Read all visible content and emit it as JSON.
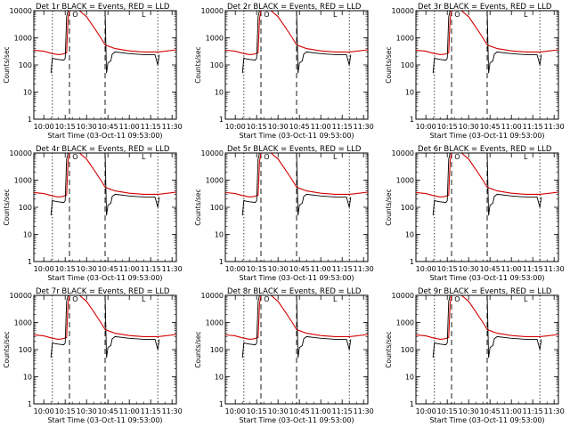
{
  "chart_data": {
    "type": "line",
    "layout": "3x3 grid",
    "xlabel": "Start Time (03-Oct-11 09:53:00)",
    "ylabel": "Counts/sec",
    "y_scale": "log",
    "ylim": [
      1,
      10000
    ],
    "xlim": [
      "09:53",
      "11:33"
    ],
    "x_tick_labels": [
      "10:00",
      "10:15",
      "10:30",
      "10:45",
      "11:00",
      "11:15",
      "11:30"
    ],
    "y_tick_labels": [
      "1",
      "10",
      "100",
      "1000",
      "10000"
    ],
    "markers": {
      "dotted_lines": [
        "10:06",
        "11:20"
      ],
      "dashed_lines": [
        "10:18",
        "10:43"
      ],
      "labels": [
        {
          "text": "O",
          "at": "10:22"
        },
        {
          "text": "L",
          "at": "11:10"
        }
      ]
    },
    "series_legend": {
      "black": "Events",
      "red": "LLD"
    },
    "panels": [
      {
        "title": "Det 1r  BLACK = Events, RED = LLD"
      },
      {
        "title": "Det 2r  BLACK = Events, RED = LLD"
      },
      {
        "title": "Det 3r  BLACK = Events, RED = LLD"
      },
      {
        "title": "Det 4r  BLACK = Events, RED = LLD"
      },
      {
        "title": "Det 5r  BLACK = Events, RED = LLD"
      },
      {
        "title": "Det 6r  BLACK = Events, RED = LLD"
      },
      {
        "title": "Det 7r  BLACK = Events, RED = LLD"
      },
      {
        "title": "Det 8r  BLACK = Events, RED = LLD"
      },
      {
        "title": "Det 9r  BLACK = Events, RED = LLD"
      }
    ],
    "series": [
      {
        "color": "#d40000",
        "x": [
          "09:53",
          "10:00",
          "10:05",
          "10:10",
          "10:13",
          "10:16",
          "10:17",
          "10:18",
          "10:25",
          "10:30",
          "10:35",
          "10:40",
          "10:43",
          "10:45",
          "10:50",
          "11:00",
          "11:10",
          "11:20",
          "11:25",
          "11:33"
        ],
        "y": [
          350,
          320,
          270,
          240,
          250,
          280,
          5000,
          12000,
          12000,
          6000,
          2500,
          1000,
          550,
          500,
          400,
          330,
          300,
          300,
          320,
          360
        ]
      },
      {
        "color": "#000000",
        "x": [
          "10:05",
          "10:06",
          "10:07",
          "10:10",
          "10:14",
          "10:15",
          "10:16",
          "10:17",
          "10:18",
          "10:43",
          "10:44",
          "10:45",
          "10:47",
          "10:48",
          "10:50",
          "11:00",
          "11:10",
          "11:18",
          "11:20",
          "11:21"
        ],
        "y": [
          50,
          180,
          170,
          160,
          150,
          175,
          6000,
          12000,
          12000,
          12000,
          50,
          120,
          140,
          250,
          300,
          260,
          240,
          240,
          100,
          240
        ]
      }
    ]
  }
}
